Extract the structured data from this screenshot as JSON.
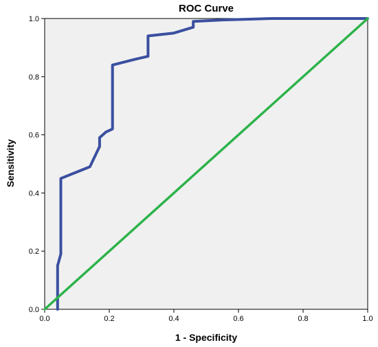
{
  "chart_data": {
    "type": "line",
    "title": "ROC Curve",
    "xlabel": "1 - Specificity",
    "ylabel": "Sensitivity",
    "xlim": [
      0,
      1
    ],
    "ylim": [
      0,
      1
    ],
    "x_ticks": [
      "0.0",
      "0.2",
      "0.4",
      "0.6",
      "0.8",
      "1.0"
    ],
    "y_ticks": [
      "0.0",
      "0.2",
      "0.4",
      "0.6",
      "0.8",
      "1.0"
    ],
    "grid": false,
    "legend": "none",
    "series": [
      {
        "color": "#3a4fa0",
        "points": [
          [
            0.04,
            0.0
          ],
          [
            0.04,
            0.15
          ],
          [
            0.05,
            0.19
          ],
          [
            0.05,
            0.45
          ],
          [
            0.14,
            0.49
          ],
          [
            0.17,
            0.56
          ],
          [
            0.17,
            0.59
          ],
          [
            0.19,
            0.61
          ],
          [
            0.21,
            0.62
          ],
          [
            0.21,
            0.84
          ],
          [
            0.28,
            0.86
          ],
          [
            0.32,
            0.87
          ],
          [
            0.32,
            0.94
          ],
          [
            0.4,
            0.95
          ],
          [
            0.46,
            0.97
          ],
          [
            0.46,
            0.99
          ],
          [
            0.55,
            0.995
          ],
          [
            0.7,
            1.0
          ],
          [
            1.0,
            1.0
          ]
        ]
      },
      {
        "color": "#2db34a",
        "points": [
          [
            0,
            0
          ],
          [
            1,
            1
          ]
        ]
      }
    ]
  }
}
